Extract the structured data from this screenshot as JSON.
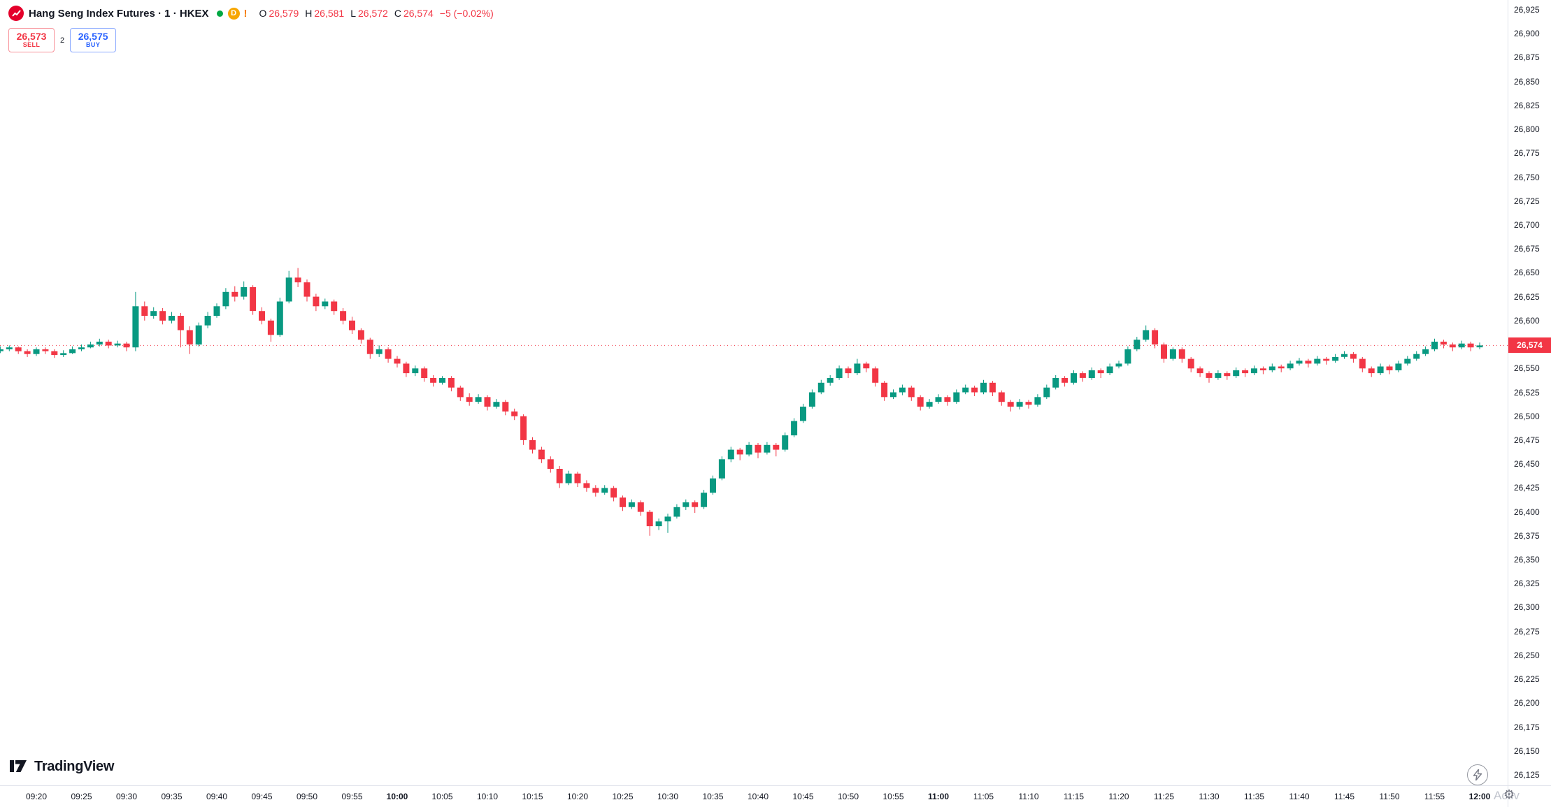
{
  "header": {
    "symbol_title": "Hang Seng Index Futures · 1 · HKEX",
    "delayed_badge": "D",
    "warning_badge": "!",
    "ohlc": {
      "o_label": "O",
      "o_value": "26,579",
      "h_label": "H",
      "h_value": "26,581",
      "l_label": "L",
      "l_value": "26,572",
      "c_label": "C",
      "c_value": "26,574",
      "change": "−5 (−0.02%)"
    }
  },
  "trade_widget": {
    "sell_price": "26,573",
    "sell_label": "SELL",
    "spread": "2",
    "buy_price": "26,575",
    "buy_label": "BUY"
  },
  "logo": {
    "text": "TradingView"
  },
  "price_scale": {
    "last_price_label": "26,574"
  },
  "corner": {
    "watermark": "Activ",
    "gear_glyph": "⚙"
  },
  "colors": {
    "up": "#089981",
    "down": "#f23645",
    "buy_blue": "#2962ff",
    "sell_red": "#f23645",
    "logo_red": "#e4002b",
    "status_green": "#00a843",
    "delayed_amber": "#f7a600",
    "warn_orange": "#f57c00",
    "axis_text": "#131722",
    "muted": "#787b86"
  },
  "chart_data": {
    "type": "candlestick",
    "title": "Hang Seng Index Futures",
    "interval_minutes": 1,
    "exchange": "HKEX",
    "session_ohlc": {
      "open": 26579,
      "high": 26581,
      "low": 26572,
      "close": 26574,
      "change": -5,
      "change_pct": "-0.02%"
    },
    "last_price": 26574,
    "grid": "off",
    "price_axis": {
      "min": 26125,
      "max": 26925,
      "step": 25,
      "side": "right"
    },
    "time_ticks": [
      "09:20",
      "09:25",
      "09:30",
      "09:35",
      "09:40",
      "09:45",
      "09:50",
      "09:55",
      "10:00",
      "10:05",
      "10:10",
      "10:15",
      "10:20",
      "10:25",
      "10:30",
      "10:35",
      "10:40",
      "10:45",
      "10:50",
      "10:55",
      "11:00",
      "11:05",
      "11:10",
      "11:15",
      "11:20",
      "11:25",
      "11:30",
      "11:35",
      "11:40",
      "11:45",
      "11:50",
      "11:55",
      "12:00"
    ],
    "bold_ticks": [
      "10:00",
      "11:00",
      "12:00"
    ],
    "first_candle_time": "09:16",
    "candles_ohlc": [
      [
        26568,
        26573,
        26566,
        26570
      ],
      [
        26570,
        26574,
        26568,
        26572
      ],
      [
        26572,
        26573,
        26565,
        26568
      ],
      [
        26568,
        26570,
        26562,
        26565
      ],
      [
        26565,
        26572,
        26563,
        26570
      ],
      [
        26570,
        26572,
        26565,
        26568
      ],
      [
        26568,
        26570,
        26561,
        26564
      ],
      [
        26564,
        26569,
        26562,
        26566
      ],
      [
        26566,
        26573,
        26565,
        26570
      ],
      [
        26570,
        26575,
        26568,
        26572
      ],
      [
        26572,
        26578,
        26571,
        26575
      ],
      [
        26575,
        26581,
        26573,
        26578
      ],
      [
        26578,
        26580,
        26571,
        26574
      ],
      [
        26574,
        26579,
        26572,
        26576
      ],
      [
        26576,
        26578,
        26568,
        26572
      ],
      [
        26572,
        26630,
        26568,
        26615
      ],
      [
        26615,
        26620,
        26600,
        26605
      ],
      [
        26605,
        26614,
        26602,
        26610
      ],
      [
        26610,
        26613,
        26596,
        26600
      ],
      [
        26600,
        26609,
        26597,
        26605
      ],
      [
        26605,
        26608,
        26572,
        26590
      ],
      [
        26590,
        26594,
        26565,
        26575
      ],
      [
        26575,
        26598,
        26573,
        26595
      ],
      [
        26595,
        26609,
        26592,
        26605
      ],
      [
        26605,
        26618,
        26603,
        26615
      ],
      [
        26615,
        26634,
        26612,
        26630
      ],
      [
        26630,
        26636,
        26620,
        26625
      ],
      [
        26625,
        26641,
        26622,
        26635
      ],
      [
        26635,
        26637,
        26606,
        26610
      ],
      [
        26610,
        26614,
        26596,
        26600
      ],
      [
        26600,
        26602,
        26578,
        26585
      ],
      [
        26585,
        26624,
        26583,
        26620
      ],
      [
        26620,
        26652,
        26618,
        26645
      ],
      [
        26645,
        26655,
        26635,
        26640
      ],
      [
        26640,
        26643,
        26620,
        26625
      ],
      [
        26625,
        26628,
        26610,
        26615
      ],
      [
        26615,
        26623,
        26612,
        26620
      ],
      [
        26620,
        26622,
        26606,
        26610
      ],
      [
        26610,
        26613,
        26596,
        26600
      ],
      [
        26600,
        26604,
        26586,
        26590
      ],
      [
        26590,
        26592,
        26576,
        26580
      ],
      [
        26580,
        26582,
        26560,
        26565
      ],
      [
        26565,
        26574,
        26562,
        26570
      ],
      [
        26570,
        26572,
        26556,
        26560
      ],
      [
        26560,
        26563,
        26551,
        26555
      ],
      [
        26555,
        26557,
        26541,
        26545
      ],
      [
        26545,
        26553,
        26542,
        26550
      ],
      [
        26550,
        26552,
        26536,
        26540
      ],
      [
        26540,
        26543,
        26531,
        26535
      ],
      [
        26535,
        26542,
        26533,
        26540
      ],
      [
        26540,
        26542,
        26526,
        26530
      ],
      [
        26530,
        26532,
        26516,
        26520
      ],
      [
        26520,
        26524,
        26511,
        26515
      ],
      [
        26515,
        26523,
        26513,
        26520
      ],
      [
        26520,
        26522,
        26506,
        26510
      ],
      [
        26510,
        26518,
        26508,
        26515
      ],
      [
        26515,
        26517,
        26501,
        26505
      ],
      [
        26505,
        26508,
        26496,
        26500
      ],
      [
        26500,
        26502,
        26470,
        26475
      ],
      [
        26475,
        26478,
        26461,
        26465
      ],
      [
        26465,
        26468,
        26451,
        26455
      ],
      [
        26455,
        26458,
        26441,
        26445
      ],
      [
        26445,
        26448,
        26425,
        26430
      ],
      [
        26430,
        26443,
        26428,
        26440
      ],
      [
        26440,
        26442,
        26426,
        26430
      ],
      [
        26430,
        26433,
        26421,
        26425
      ],
      [
        26425,
        26428,
        26416,
        26420
      ],
      [
        26420,
        26428,
        26418,
        26425
      ],
      [
        26425,
        26427,
        26411,
        26415
      ],
      [
        26415,
        26417,
        26401,
        26405
      ],
      [
        26405,
        26413,
        26403,
        26410
      ],
      [
        26410,
        26412,
        26396,
        26400
      ],
      [
        26400,
        26402,
        26375,
        26385
      ],
      [
        26385,
        26393,
        26381,
        26390
      ],
      [
        26390,
        26398,
        26378,
        26395
      ],
      [
        26395,
        26408,
        26393,
        26405
      ],
      [
        26405,
        26413,
        26402,
        26410
      ],
      [
        26410,
        26412,
        26399,
        26405
      ],
      [
        26405,
        26423,
        26403,
        26420
      ],
      [
        26420,
        26438,
        26418,
        26435
      ],
      [
        26435,
        26458,
        26433,
        26455
      ],
      [
        26455,
        26468,
        26452,
        26465
      ],
      [
        26465,
        26467,
        26454,
        26460
      ],
      [
        26460,
        26473,
        26458,
        26470
      ],
      [
        26470,
        26472,
        26456,
        26462
      ],
      [
        26462,
        26473,
        26460,
        26470
      ],
      [
        26470,
        26472,
        26458,
        26465
      ],
      [
        26465,
        26483,
        26463,
        26480
      ],
      [
        26480,
        26498,
        26478,
        26495
      ],
      [
        26495,
        26513,
        26493,
        26510
      ],
      [
        26510,
        26528,
        26508,
        26525
      ],
      [
        26525,
        26538,
        26523,
        26535
      ],
      [
        26535,
        26543,
        26532,
        26540
      ],
      [
        26540,
        26553,
        26538,
        26550
      ],
      [
        26550,
        26552,
        26540,
        26545
      ],
      [
        26545,
        26560,
        26543,
        26555
      ],
      [
        26555,
        26557,
        26546,
        26550
      ],
      [
        26550,
        26552,
        26531,
        26535
      ],
      [
        26535,
        26537,
        26516,
        26520
      ],
      [
        26520,
        26528,
        26518,
        26525
      ],
      [
        26525,
        26533,
        26522,
        26530
      ],
      [
        26530,
        26532,
        26516,
        26520
      ],
      [
        26520,
        26522,
        26506,
        26510
      ],
      [
        26510,
        26518,
        26508,
        26515
      ],
      [
        26515,
        26523,
        26513,
        26520
      ],
      [
        26520,
        26522,
        26511,
        26515
      ],
      [
        26515,
        26528,
        26513,
        26525
      ],
      [
        26525,
        26533,
        26523,
        26530
      ],
      [
        26530,
        26532,
        26521,
        26525
      ],
      [
        26525,
        26538,
        26523,
        26535
      ],
      [
        26535,
        26537,
        26521,
        26525
      ],
      [
        26525,
        26527,
        26511,
        26515
      ],
      [
        26515,
        26517,
        26505,
        26510
      ],
      [
        26510,
        26518,
        26507,
        26515
      ],
      [
        26515,
        26517,
        26508,
        26512
      ],
      [
        26512,
        26523,
        26510,
        26520
      ],
      [
        26520,
        26533,
        26518,
        26530
      ],
      [
        26530,
        26543,
        26528,
        26540
      ],
      [
        26540,
        26542,
        26531,
        26535
      ],
      [
        26535,
        26548,
        26533,
        26545
      ],
      [
        26545,
        26547,
        26536,
        26540
      ],
      [
        26540,
        26551,
        26538,
        26548
      ],
      [
        26548,
        26550,
        26540,
        26545
      ],
      [
        26545,
        26555,
        26543,
        26552
      ],
      [
        26552,
        26558,
        26550,
        26555
      ],
      [
        26555,
        26573,
        26553,
        26570
      ],
      [
        26570,
        26583,
        26568,
        26580
      ],
      [
        26580,
        26595,
        26578,
        26590
      ],
      [
        26590,
        26592,
        26571,
        26575
      ],
      [
        26575,
        26577,
        26556,
        26560
      ],
      [
        26560,
        26572,
        26558,
        26570
      ],
      [
        26570,
        26572,
        26556,
        26560
      ],
      [
        26560,
        26562,
        26546,
        26550
      ],
      [
        26550,
        26552,
        26541,
        26545
      ],
      [
        26545,
        26547,
        26535,
        26540
      ],
      [
        26540,
        26548,
        26538,
        26545
      ],
      [
        26545,
        26547,
        26538,
        26542
      ],
      [
        26542,
        26551,
        26540,
        26548
      ],
      [
        26548,
        26550,
        26541,
        26545
      ],
      [
        26545,
        26553,
        26543,
        26550
      ],
      [
        26550,
        26552,
        26544,
        26548
      ],
      [
        26548,
        26555,
        26546,
        26552
      ],
      [
        26552,
        26554,
        26546,
        26550
      ],
      [
        26550,
        26558,
        26548,
        26555
      ],
      [
        26555,
        26561,
        26553,
        26558
      ],
      [
        26558,
        26560,
        26551,
        26555
      ],
      [
        26555,
        26563,
        26553,
        26560
      ],
      [
        26560,
        26562,
        26554,
        26558
      ],
      [
        26558,
        26565,
        26556,
        26562
      ],
      [
        26562,
        26568,
        26560,
        26565
      ],
      [
        26565,
        26567,
        26556,
        26560
      ],
      [
        26560,
        26562,
        26546,
        26550
      ],
      [
        26550,
        26552,
        26541,
        26545
      ],
      [
        26545,
        26555,
        26543,
        26552
      ],
      [
        26552,
        26554,
        26544,
        26548
      ],
      [
        26548,
        26558,
        26546,
        26555
      ],
      [
        26555,
        26563,
        26553,
        26560
      ],
      [
        26560,
        26568,
        26558,
        26565
      ],
      [
        26565,
        26573,
        26563,
        26570
      ],
      [
        26570,
        26581,
        26568,
        26578
      ],
      [
        26578,
        26580,
        26571,
        26575
      ],
      [
        26575,
        26577,
        26568,
        26572
      ],
      [
        26572,
        26579,
        26570,
        26576
      ],
      [
        26576,
        26578,
        26568,
        26572
      ],
      [
        26572,
        26577,
        26570,
        26574
      ]
    ]
  }
}
